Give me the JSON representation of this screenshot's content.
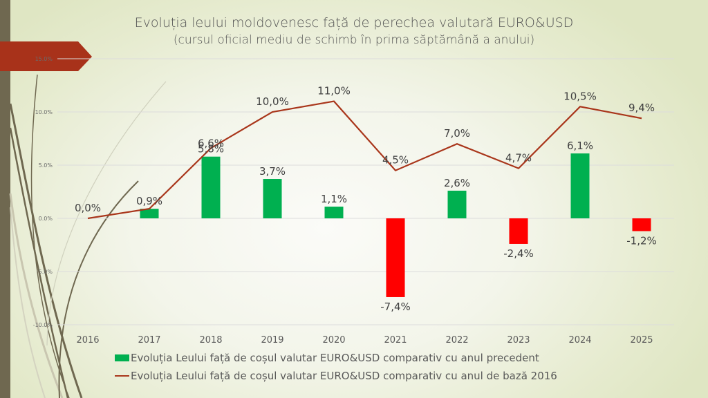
{
  "slide": {
    "title": "Evoluția leului moldovenesc față de perechea valutară EURO&USD",
    "subtitle": "(cursul oficial mediu de schimb în prima săptămână a anului)",
    "colors": {
      "left_bar": "#6f6850",
      "banner": "#a8321a",
      "bar_positive": "#00b050",
      "bar_negative": "#ff0000",
      "line": "#a9361b",
      "gridline": "#dcdcdc"
    }
  },
  "chart_data": {
    "type": "bar",
    "title": "Evoluția leului moldovenesc față de perechea valutară EURO&USD",
    "subtitle": "(cursul oficial mediu de schimb în prima săptămână a anului)",
    "xlabel": "",
    "ylabel": "",
    "categories": [
      "2016",
      "2017",
      "2018",
      "2019",
      "2020",
      "2021",
      "2022",
      "2023",
      "2024",
      "2025"
    ],
    "ylim": [
      -10,
      15
    ],
    "yticks": [
      15,
      10,
      5,
      0,
      -5,
      -10
    ],
    "ytick_labels": [
      "15.0%",
      "10.0%",
      "5.0%",
      "0.0%",
      "-5.0%",
      "-10.0%"
    ],
    "grid": true,
    "legend_position": "bottom",
    "series": [
      {
        "name": "Evoluția Leului față de coșul valutar EURO&USD comparativ cu anul precedent",
        "type": "bar",
        "values": [
          null,
          0.9,
          5.8,
          3.7,
          1.1,
          -7.4,
          2.6,
          -2.4,
          6.1,
          -1.2
        ],
        "labels": [
          "",
          "0,9%",
          "5,8%",
          "3,7%",
          "1,1%",
          "-7,4%",
          "2,6%",
          "-2,4%",
          "6,1%",
          "-1,2%"
        ]
      },
      {
        "name": "Evoluția Leului față de coșul valutar EURO&USD comparativ cu anul de bază 2016",
        "type": "line",
        "values": [
          0.0,
          0.9,
          6.6,
          10.0,
          11.0,
          4.5,
          7.0,
          4.7,
          10.5,
          9.4
        ],
        "labels": [
          "0,0%",
          "",
          "6,6%",
          "10,0%",
          "11,0%",
          "4,5%",
          "7,0%",
          "4,7%",
          "10,5%",
          "9,4%"
        ]
      }
    ]
  }
}
